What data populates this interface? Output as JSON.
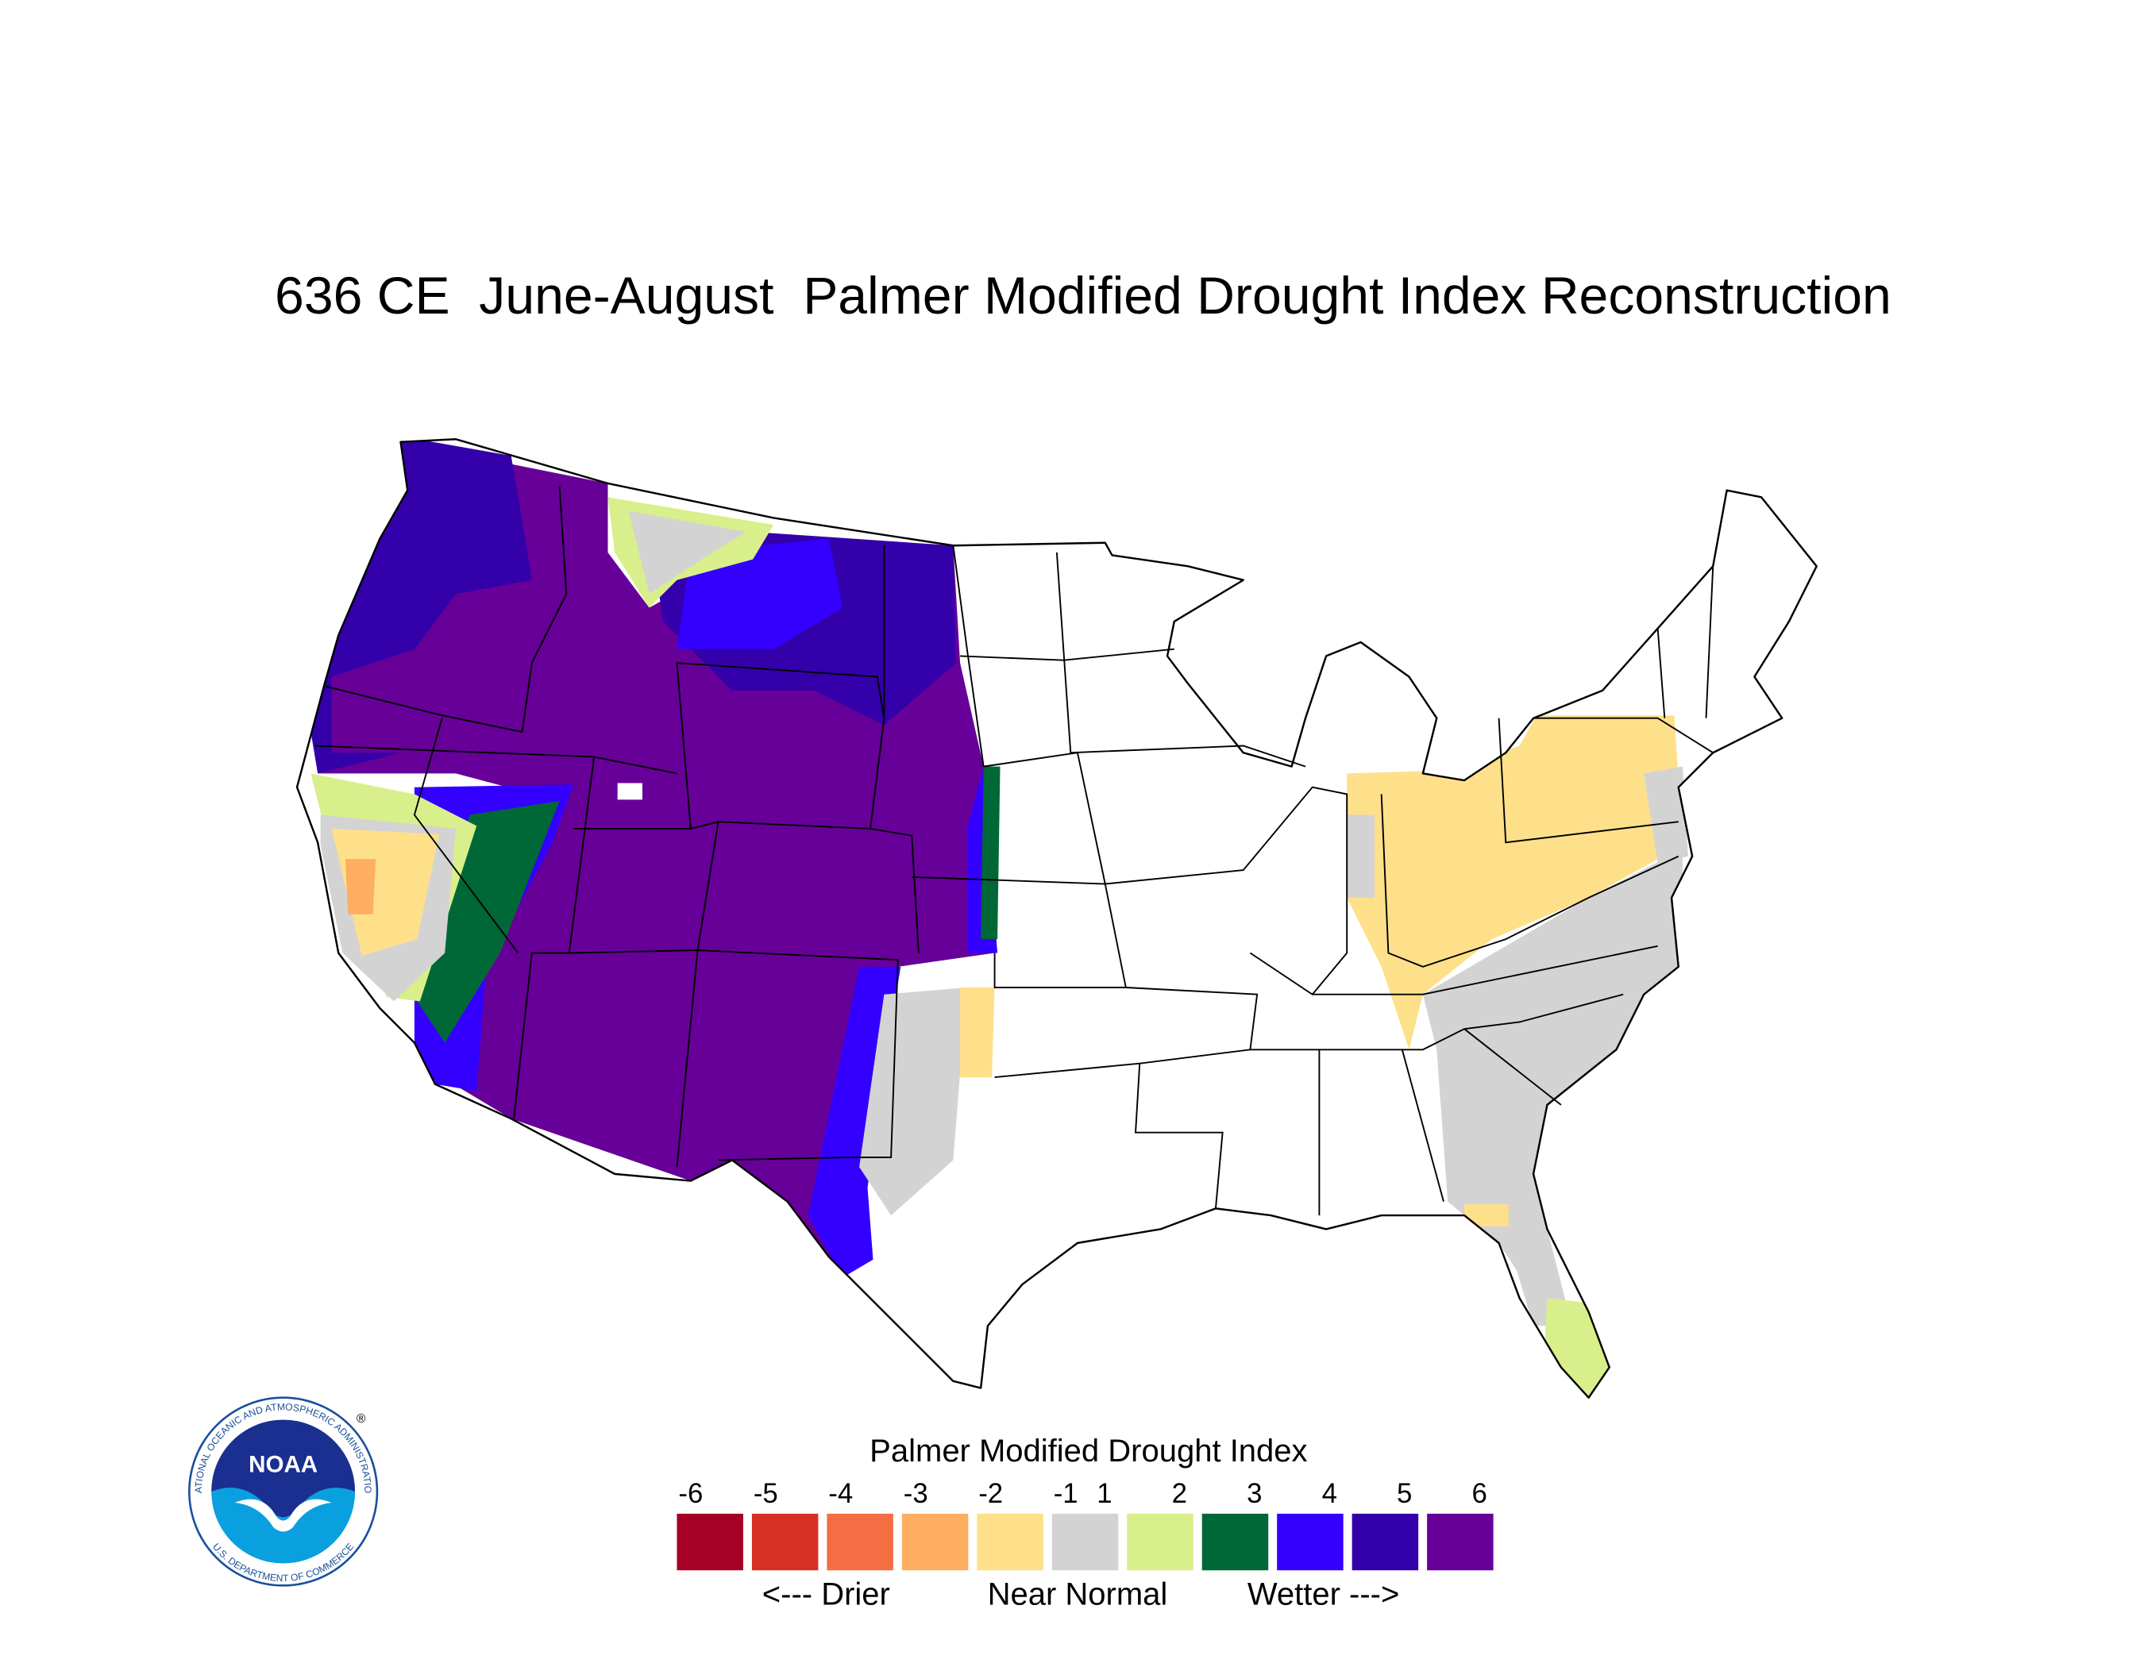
{
  "title": "636 CE  June-August  Palmer Modified Drought Index Reconstruction",
  "legend": {
    "title": "Palmer Modified Drought Index",
    "ticks": [
      -6,
      -5,
      -4,
      -3,
      -2,
      -1,
      1,
      2,
      3,
      4,
      5,
      6
    ],
    "colors": [
      "#a50026",
      "#d73027",
      "#f46d43",
      "#fdae61",
      "#fee08b",
      "#d3d3d3",
      "#d9ef8b",
      "#006837",
      "#3300ff",
      "#3300aa",
      "#660099"
    ],
    "labels": [
      "<--- Drier",
      "Near Normal",
      "Wetter --->"
    ]
  },
  "logo": {
    "name": "NOAA",
    "ring_top": "NATIONAL OCEANIC AND ATMOSPHERIC ADMINISTRATION",
    "ring_bottom": "U.S. DEPARTMENT OF COMMERCE",
    "mark": "®"
  }
}
